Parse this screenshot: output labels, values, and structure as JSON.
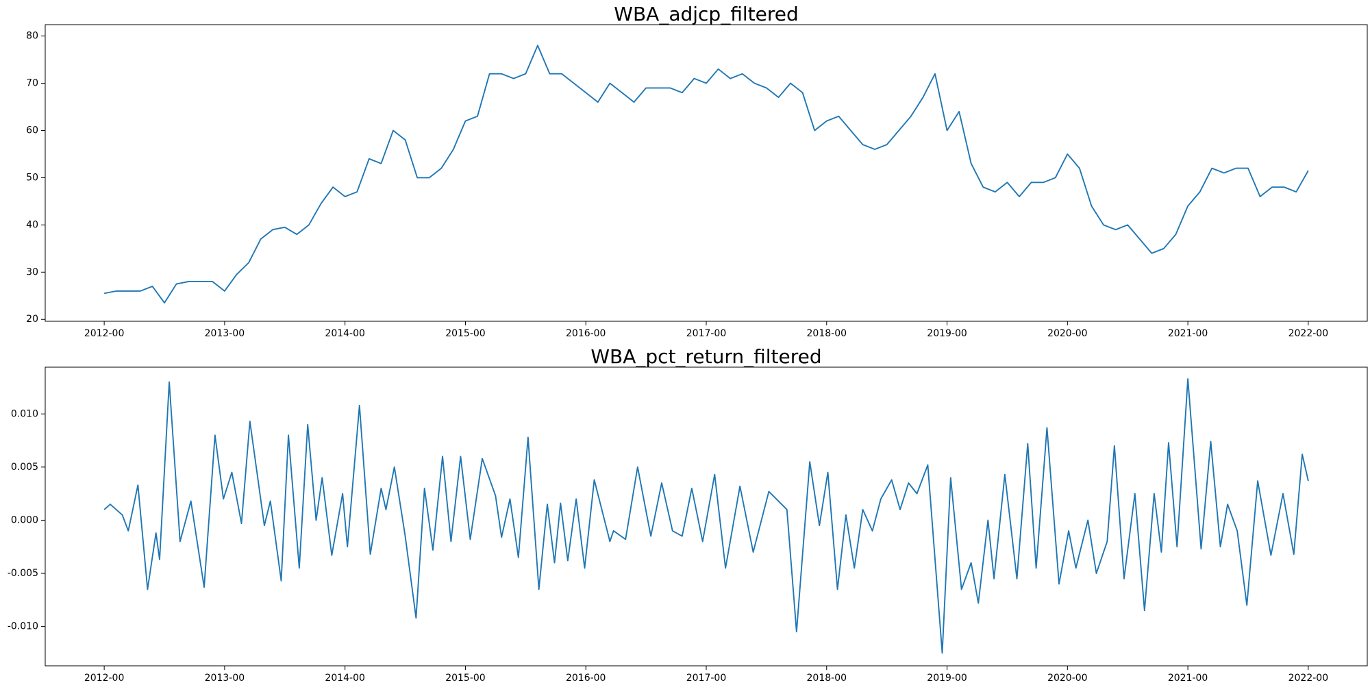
{
  "chart_data": [
    {
      "type": "line",
      "title": "WBA_adjcp_filtered",
      "color": "#1f77b4",
      "x": [
        2012.0,
        2012.1,
        2012.2,
        2012.3,
        2012.4,
        2012.5,
        2012.6,
        2012.7,
        2012.8,
        2012.9,
        2013.0,
        2013.1,
        2013.2,
        2013.3,
        2013.4,
        2013.5,
        2013.6,
        2013.7,
        2013.8,
        2013.9,
        2014.0,
        2014.1,
        2014.2,
        2014.3,
        2014.4,
        2014.5,
        2014.6,
        2014.7,
        2014.8,
        2014.9,
        2015.0,
        2015.1,
        2015.2,
        2015.3,
        2015.4,
        2015.5,
        2015.6,
        2015.7,
        2015.8,
        2015.9,
        2016.0,
        2016.1,
        2016.2,
        2016.3,
        2016.4,
        2016.5,
        2016.6,
        2016.7,
        2016.8,
        2016.9,
        2017.0,
        2017.1,
        2017.2,
        2017.3,
        2017.4,
        2017.5,
        2017.6,
        2017.7,
        2017.8,
        2017.9,
        2018.0,
        2018.1,
        2018.2,
        2018.3,
        2018.4,
        2018.5,
        2018.6,
        2018.7,
        2018.8,
        2018.9,
        2019.0,
        2019.1,
        2019.2,
        2019.3,
        2019.4,
        2019.5,
        2019.6,
        2019.7,
        2019.8,
        2019.9,
        2020.0,
        2020.1,
        2020.2,
        2020.3,
        2020.4,
        2020.5,
        2020.6,
        2020.7,
        2020.8,
        2020.9,
        2021.0,
        2021.1,
        2021.2,
        2021.3,
        2021.4,
        2021.5,
        2021.6,
        2021.7,
        2021.8,
        2021.9,
        2022.0
      ],
      "values": [
        25.5,
        26,
        26,
        26,
        27,
        23.5,
        27.5,
        28,
        28,
        28,
        26,
        29.5,
        32,
        37,
        39,
        39.5,
        38,
        40,
        44.5,
        48,
        46,
        47,
        54,
        53,
        60,
        58,
        50,
        50,
        52,
        56,
        62,
        63,
        72,
        72,
        71,
        72,
        78,
        72,
        72,
        70,
        68,
        66,
        70,
        68,
        66,
        69,
        69,
        69,
        68,
        71,
        70,
        73,
        71,
        72,
        70,
        69,
        67,
        70,
        68,
        60,
        62,
        63,
        60,
        57,
        56,
        57,
        60,
        63,
        67,
        72,
        60,
        64,
        53,
        48,
        47,
        49,
        46,
        49,
        49,
        50,
        55,
        52,
        44,
        40,
        39,
        40,
        37,
        34,
        35,
        38,
        44,
        47,
        52,
        51,
        52,
        52,
        46,
        48,
        48,
        47,
        51.5
      ],
      "xlim": [
        2011.51,
        2022.49
      ],
      "ylim": [
        19.6,
        82.4
      ],
      "xticks": [
        {
          "value": 2012,
          "label": "2012-00"
        },
        {
          "value": 2013,
          "label": "2013-00"
        },
        {
          "value": 2014,
          "label": "2014-00"
        },
        {
          "value": 2015,
          "label": "2015-00"
        },
        {
          "value": 2016,
          "label": "2016-00"
        },
        {
          "value": 2017,
          "label": "2017-00"
        },
        {
          "value": 2018,
          "label": "2018-00"
        },
        {
          "value": 2019,
          "label": "2019-00"
        },
        {
          "value": 2020,
          "label": "2020-00"
        },
        {
          "value": 2021,
          "label": "2021-00"
        },
        {
          "value": 2022,
          "label": "2022-00"
        }
      ],
      "yticks": [
        20,
        30,
        40,
        50,
        60,
        70,
        80
      ]
    },
    {
      "type": "line",
      "title": "WBA_pct_return_filtered",
      "color": "#1f77b4",
      "x": [
        2012.0,
        2012.05,
        2012.15,
        2012.2,
        2012.28,
        2012.36,
        2012.43,
        2012.46,
        2012.54,
        2012.63,
        2012.72,
        2012.83,
        2012.92,
        2012.99,
        2013.06,
        2013.14,
        2013.21,
        2013.33,
        2013.38,
        2013.47,
        2013.53,
        2013.62,
        2013.69,
        2013.76,
        2013.81,
        2013.89,
        2013.98,
        2014.02,
        2014.12,
        2014.21,
        2014.3,
        2014.34,
        2014.41,
        2014.5,
        2014.59,
        2014.66,
        2014.73,
        2014.81,
        2014.88,
        2014.96,
        2015.04,
        2015.14,
        2015.25,
        2015.3,
        2015.37,
        2015.44,
        2015.52,
        2015.61,
        2015.68,
        2015.74,
        2015.79,
        2015.85,
        2015.92,
        2015.99,
        2016.07,
        2016.2,
        2016.23,
        2016.33,
        2016.43,
        2016.54,
        2016.63,
        2016.72,
        2016.8,
        2016.88,
        2016.97,
        2017.07,
        2017.16,
        2017.28,
        2017.39,
        2017.52,
        2017.67,
        2017.75,
        2017.86,
        2017.94,
        2018.01,
        2018.09,
        2018.16,
        2018.23,
        2018.3,
        2018.38,
        2018.45,
        2018.54,
        2018.61,
        2018.68,
        2018.75,
        2018.84,
        2018.96,
        2019.03,
        2019.12,
        2019.2,
        2019.26,
        2019.34,
        2019.39,
        2019.48,
        2019.58,
        2019.67,
        2019.74,
        2019.83,
        2019.93,
        2020.01,
        2020.07,
        2020.17,
        2020.24,
        2020.33,
        2020.39,
        2020.47,
        2020.56,
        2020.64,
        2020.72,
        2020.78,
        2020.84,
        2020.91,
        2021.0,
        2021.11,
        2021.19,
        2021.27,
        2021.33,
        2021.41,
        2021.49,
        2021.58,
        2021.69,
        2021.79,
        2021.88,
        2021.95,
        2022.0
      ],
      "values": [
        0.001,
        0.0015,
        0.0005,
        -0.001,
        0.0033,
        -0.0065,
        -0.0012,
        -0.0037,
        0.013,
        -0.002,
        0.0018,
        -0.0063,
        0.008,
        0.002,
        0.0045,
        -0.0003,
        0.0093,
        -0.0005,
        0.0018,
        -0.0057,
        0.008,
        -0.0045,
        0.009,
        0.0,
        0.004,
        -0.0033,
        0.0025,
        -0.0025,
        0.0108,
        -0.0032,
        0.003,
        0.001,
        0.005,
        -0.0015,
        -0.0092,
        0.003,
        -0.0028,
        0.006,
        -0.002,
        0.006,
        -0.0018,
        0.0058,
        0.0023,
        -0.0016,
        0.002,
        -0.0035,
        0.0078,
        -0.0065,
        0.0015,
        -0.004,
        0.0016,
        -0.0038,
        0.002,
        -0.0045,
        0.0038,
        -0.002,
        -0.001,
        -0.0018,
        0.005,
        -0.0015,
        0.0035,
        -0.001,
        -0.0015,
        0.003,
        -0.002,
        0.0043,
        -0.0045,
        0.0032,
        -0.003,
        0.0027,
        0.001,
        -0.0105,
        0.0055,
        -0.0005,
        0.0045,
        -0.0065,
        0.0005,
        -0.0045,
        0.001,
        -0.001,
        0.002,
        0.0038,
        0.001,
        0.0035,
        0.0025,
        0.0052,
        -0.0125,
        0.004,
        -0.0065,
        -0.004,
        -0.0078,
        0.0,
        -0.0055,
        0.0043,
        -0.0055,
        0.0072,
        -0.0045,
        0.0087,
        -0.006,
        -0.001,
        -0.0045,
        0.0,
        -0.005,
        -0.002,
        0.007,
        -0.0055,
        0.0025,
        -0.0085,
        0.0025,
        -0.003,
        0.0073,
        -0.0025,
        0.0133,
        -0.0027,
        0.0074,
        -0.0025,
        0.0015,
        -0.001,
        -0.008,
        0.0037,
        -0.0033,
        0.0025,
        -0.0032,
        0.0062,
        0.0037
      ],
      "xlim": [
        2011.51,
        2022.49
      ],
      "ylim": [
        -0.0137,
        0.0144
      ],
      "xticks": [
        {
          "value": 2012,
          "label": "2012-00"
        },
        {
          "value": 2013,
          "label": "2013-00"
        },
        {
          "value": 2014,
          "label": "2014-00"
        },
        {
          "value": 2015,
          "label": "2015-00"
        },
        {
          "value": 2016,
          "label": "2016-00"
        },
        {
          "value": 2017,
          "label": "2017-00"
        },
        {
          "value": 2018,
          "label": "2018-00"
        },
        {
          "value": 2019,
          "label": "2019-00"
        },
        {
          "value": 2020,
          "label": "2020-00"
        },
        {
          "value": 2021,
          "label": "2021-00"
        },
        {
          "value": 2022,
          "label": "2022-00"
        }
      ],
      "yticks": [
        {
          "value": -0.01,
          "label": "-0.010"
        },
        {
          "value": -0.005,
          "label": "-0.005"
        },
        {
          "value": 0,
          "label": "0.000"
        },
        {
          "value": 0.005,
          "label": "0.005"
        },
        {
          "value": 0.01,
          "label": "0.010"
        }
      ]
    }
  ]
}
